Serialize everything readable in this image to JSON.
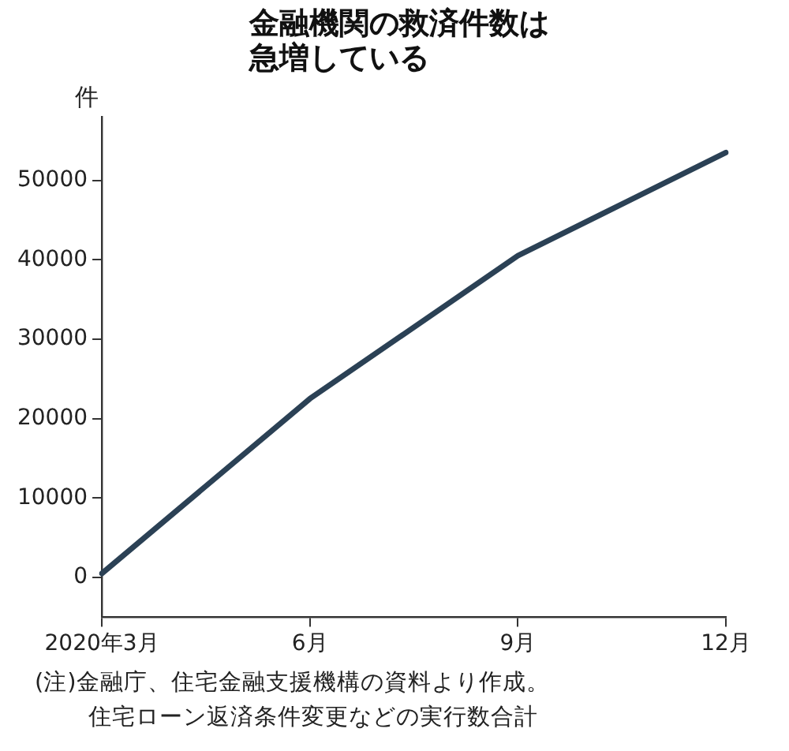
{
  "chart_data": {
    "type": "line",
    "title": "金融機関の救済件数は急増している",
    "ylabel": "件",
    "categories": [
      "2020年3月",
      "6月",
      "9月",
      "12月"
    ],
    "series": [
      {
        "color": "#2b4155",
        "values": [
          500,
          22500,
          40500,
          53500
        ]
      }
    ],
    "ylim": [
      -5000,
      58000
    ],
    "yticks": [
      0,
      10000,
      20000,
      30000,
      40000,
      50000
    ],
    "grid": false,
    "legend": false,
    "marker": "none",
    "line_style": "solid",
    "annotations": [
      "(注)金融庁、住宅金融支援機構の資料より作成。",
      "住宅ローン返済条件変更などの実行数合計"
    ]
  }
}
